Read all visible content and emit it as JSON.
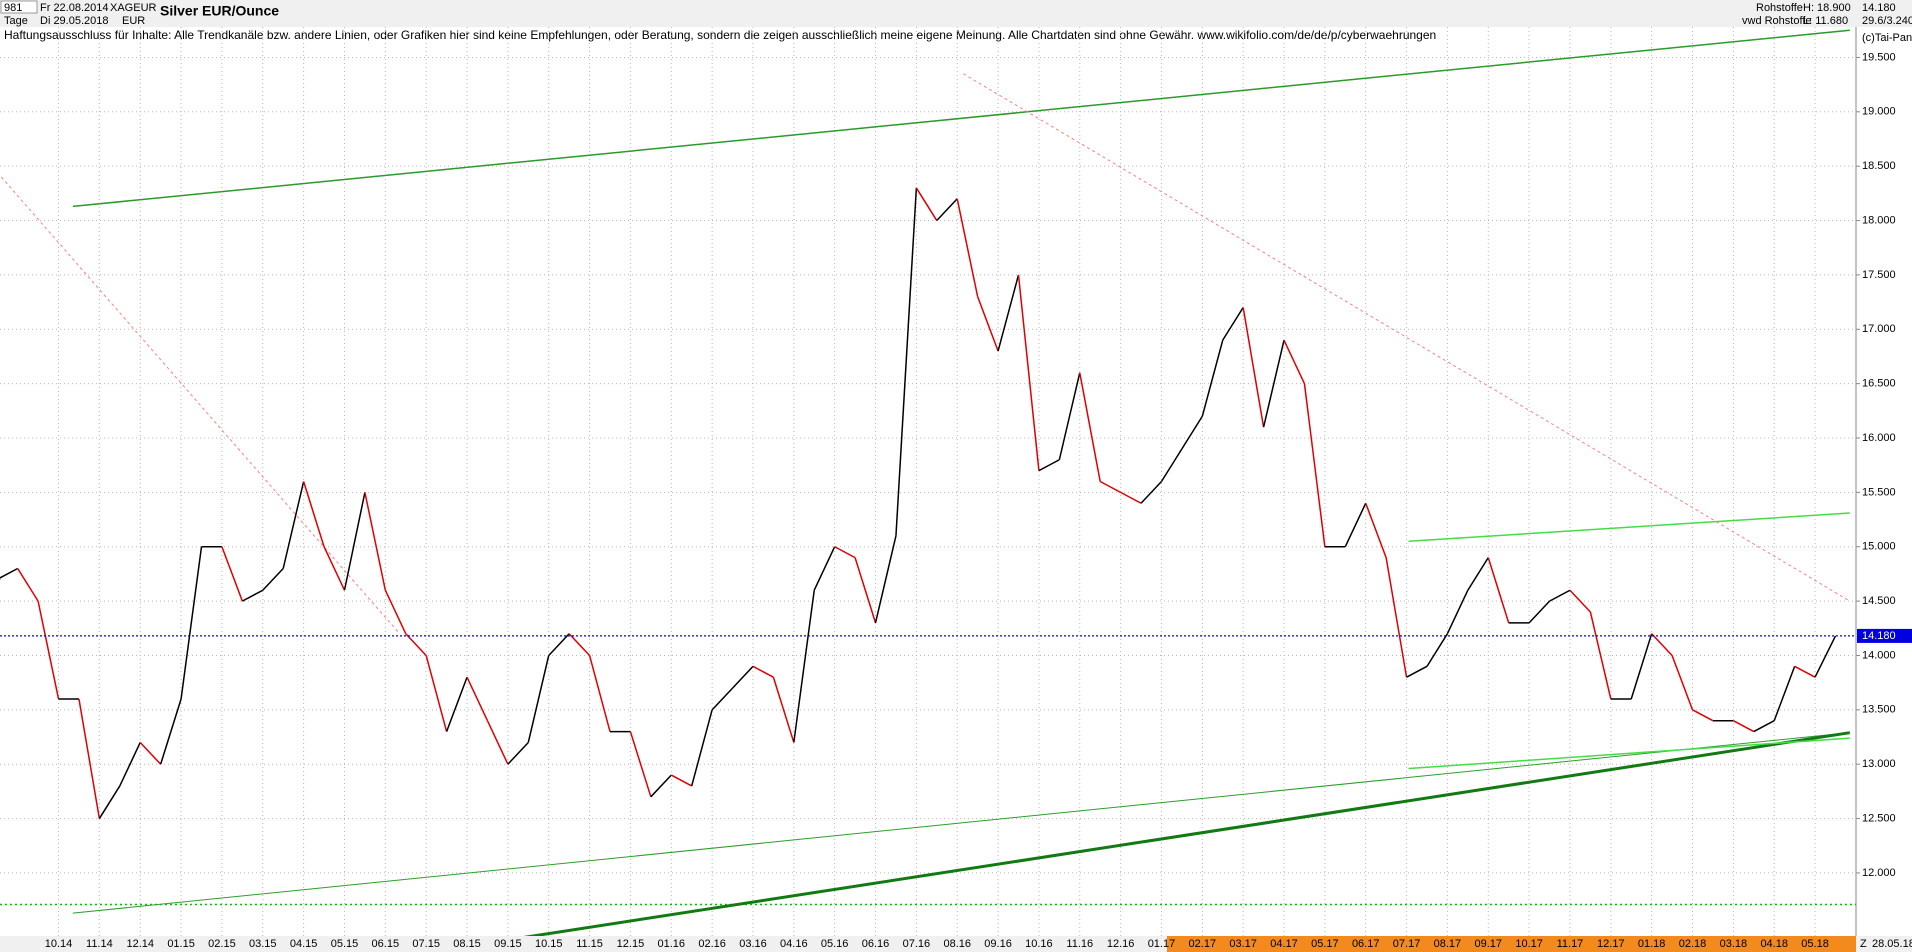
{
  "header": {
    "id": "981",
    "period": "Tage",
    "from": "Fr 22.08.2014",
    "to": "Di 29.05.2018",
    "symbol": "XAGEUR",
    "currency": "EUR",
    "group": "Rohstoffe",
    "source": "vwd Rohstoffe",
    "high": "H: 18.900",
    "low": "L: 11.680",
    "ratio": "29.6/3.240",
    "copyright": "(c)Tai-Pan",
    "disclaimer": "Haftungsausschluss für Inhalte: Alle Trendkanäle bzw. andere Linien, oder Grafiken hier sind keine Empfehlungen, oder Beratung, sondern die zeigen ausschließlich meine eigene Meinung. Alle Chartdaten sind ohne Gewähr.  www.wikifolio.com/de/de/p/cyberwaehrungen",
    "axis_marker": "Z",
    "axis_end_date": "28.05.18"
  },
  "chart_data": {
    "type": "line",
    "title": "Silver EUR/Ounce",
    "categories": [
      null,
      null,
      null,
      "10.14",
      null,
      "11.14",
      null,
      "12.14",
      null,
      "01.15",
      null,
      "02.15",
      null,
      "03.15",
      null,
      "04.15",
      null,
      "05.15",
      null,
      "06.15",
      null,
      "07.15",
      null,
      "08.15",
      null,
      "09.15",
      null,
      "10.15",
      null,
      "11.15",
      null,
      "12.15",
      null,
      "01.16",
      null,
      "02.16",
      null,
      "03.16",
      null,
      "04.16",
      null,
      "05.16",
      null,
      "06.16",
      null,
      "07.16",
      null,
      "08.16",
      null,
      "09.16",
      null,
      "10.16",
      null,
      "11.16",
      null,
      "12.16",
      null,
      "01.17",
      null,
      "02.17",
      null,
      "03.17",
      null,
      "04.17",
      null,
      "05.17",
      null,
      "06.17",
      null,
      "07.17",
      null,
      "08.17",
      null,
      "09.17",
      null,
      "10.17",
      null,
      "11.17",
      null,
      "12.17",
      null,
      "01.18",
      null,
      "02.18",
      null,
      "03.18",
      null,
      "04.18",
      null,
      "05.18",
      null
    ],
    "values": [
      14.7,
      14.8,
      14.5,
      13.6,
      13.6,
      12.5,
      12.8,
      13.2,
      13.0,
      13.6,
      15.0,
      15.0,
      14.5,
      14.6,
      14.8,
      15.6,
      15.0,
      14.6,
      15.5,
      14.6,
      14.2,
      14.0,
      13.3,
      13.8,
      13.4,
      13.0,
      13.2,
      14.0,
      14.2,
      14.0,
      13.3,
      13.3,
      12.7,
      12.9,
      12.8,
      13.5,
      13.7,
      13.9,
      13.8,
      13.2,
      14.6,
      15.0,
      14.9,
      14.3,
      15.1,
      18.3,
      18.0,
      18.2,
      17.3,
      16.8,
      17.5,
      15.7,
      15.8,
      16.6,
      15.6,
      15.5,
      15.4,
      15.6,
      15.9,
      16.2,
      16.9,
      17.2,
      16.1,
      16.9,
      16.5,
      15.0,
      15.0,
      15.4,
      14.9,
      13.8,
      13.9,
      14.2,
      14.6,
      14.9,
      14.3,
      14.3,
      14.5,
      14.6,
      14.4,
      13.6,
      13.6,
      14.2,
      14.0,
      13.5,
      13.4,
      13.4,
      13.3,
      13.4,
      13.9,
      13.8,
      14.18
    ],
    "up_color": "#000000",
    "down_color": "#e00000",
    "ylim": [
      11.42,
      19.78
    ],
    "yticks": [
      {
        "value": 12,
        "label": "12.000"
      },
      {
        "value": 12.5,
        "label": "12.500"
      },
      {
        "value": 13,
        "label": "13.000"
      },
      {
        "value": 13.5,
        "label": "13.500"
      },
      {
        "value": 14,
        "label": "14.000"
      },
      {
        "value": 14.5,
        "label": "14.500"
      },
      {
        "value": 15,
        "label": "15.000"
      },
      {
        "value": 15.5,
        "label": "15.500"
      },
      {
        "value": 16,
        "label": "16.000"
      },
      {
        "value": 16.5,
        "label": "16.500"
      },
      {
        "value": 17,
        "label": "17.000"
      },
      {
        "value": 17.5,
        "label": "17.500"
      },
      {
        "value": 18,
        "label": "18.000"
      },
      {
        "value": 18.5,
        "label": "18.500"
      },
      {
        "value": 19,
        "label": "19.000"
      },
      {
        "value": 19.5,
        "label": "19.500"
      }
    ],
    "grid": true,
    "last_value": {
      "value": 14.18,
      "label": "14.180",
      "color": "#0000e0"
    },
    "hlines": [
      {
        "value": 11.71,
        "color": "#00c000"
      }
    ],
    "trendlines": [
      {
        "from": [
          3.7,
          18.13
        ],
        "to": [
          90.7,
          19.75
        ],
        "color": "#2a9a2a",
        "width": 1.5,
        "dashed": false
      },
      {
        "from": [
          3.7,
          11.63
        ],
        "to": [
          90.7,
          13.29
        ],
        "color": "#2aa02a",
        "width": 1,
        "dashed": false
      },
      {
        "from": [
          25.2,
          11.39
        ],
        "to": [
          90.7,
          13.29
        ],
        "color": "#127a12",
        "width": 3,
        "dashed": false
      },
      {
        "from": [
          69.1,
          15.05
        ],
        "to": [
          90.7,
          15.31
        ],
        "color": "#44dd44",
        "width": 1.5,
        "dashed": false
      },
      {
        "from": [
          69.1,
          12.96
        ],
        "to": [
          90.7,
          13.24
        ],
        "color": "#44dd44",
        "width": 1.5,
        "dashed": false
      },
      {
        "from": [
          0.2,
          18.4
        ],
        "to": [
          19.7,
          14.2
        ],
        "color": "#ff8080",
        "width": 1,
        "dashed": true
      },
      {
        "from": [
          47.3,
          19.35
        ],
        "to": [
          90.7,
          14.5
        ],
        "color": "#ff8080",
        "width": 1,
        "dashed": true
      }
    ]
  }
}
